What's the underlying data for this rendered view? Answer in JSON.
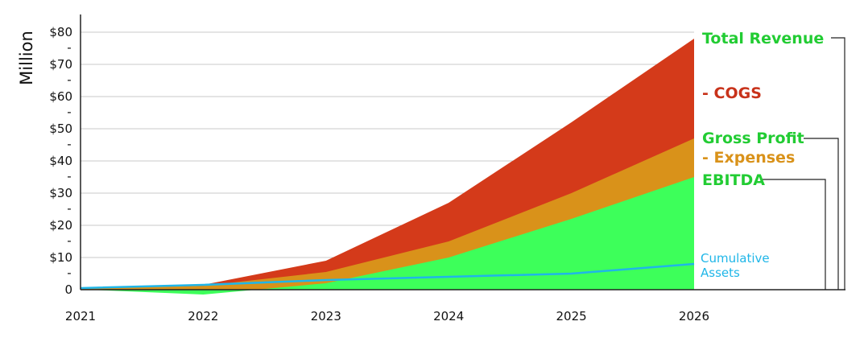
{
  "chart_data": {
    "type": "area",
    "title": "",
    "xlabel": "",
    "ylabel": "Million",
    "x": [
      "2021",
      "2022",
      "2023",
      "2024",
      "2025",
      "2026"
    ],
    "ylim": [
      0,
      80
    ],
    "y_ticks": [
      {
        "value": 0,
        "label": "0"
      },
      {
        "value": 10,
        "label": "$10"
      },
      {
        "value": 20,
        "label": "$20"
      },
      {
        "value": 30,
        "label": "$30"
      },
      {
        "value": 40,
        "label": "$40"
      },
      {
        "value": 50,
        "label": "$50"
      },
      {
        "value": 60,
        "label": "$60"
      },
      {
        "value": 70,
        "label": "$70"
      },
      {
        "value": 80,
        "label": "$80"
      }
    ],
    "minor_tick_dash": "-",
    "grid": true,
    "series": [
      {
        "name": "Total Revenue",
        "values": [
          0.5,
          1.5,
          9,
          27,
          52,
          78
        ],
        "color": "#d43a1a"
      },
      {
        "name": "Gross Profit",
        "values": [
          0.3,
          1.2,
          5.5,
          15,
          30,
          47
        ],
        "color": "#d9921a"
      },
      {
        "name": "EBITDA",
        "values": [
          0.1,
          -1.5,
          2,
          10,
          22,
          35
        ],
        "color": "#3dff5a"
      },
      {
        "name": "Cumulative Assets",
        "values": [
          0.5,
          1.5,
          3,
          4,
          5,
          8
        ],
        "color": "#1fb6e8"
      }
    ],
    "labels": {
      "total_revenue": {
        "text": "Total Revenue",
        "color": "#22cc33"
      },
      "cogs": {
        "text": "- COGS",
        "color": "#c8321a"
      },
      "gross_profit": {
        "text": "Gross Profit",
        "color": "#22cc33"
      },
      "expenses": {
        "text": "- Expenses",
        "color": "#d9921a"
      },
      "ebitda": {
        "text": "EBITDA",
        "color": "#22cc33"
      },
      "cumulative_1": {
        "text": "Cumulative",
        "color": "#1fb6e8"
      },
      "cumulative_2": {
        "text": "Assets",
        "color": "#1fb6e8"
      }
    }
  }
}
